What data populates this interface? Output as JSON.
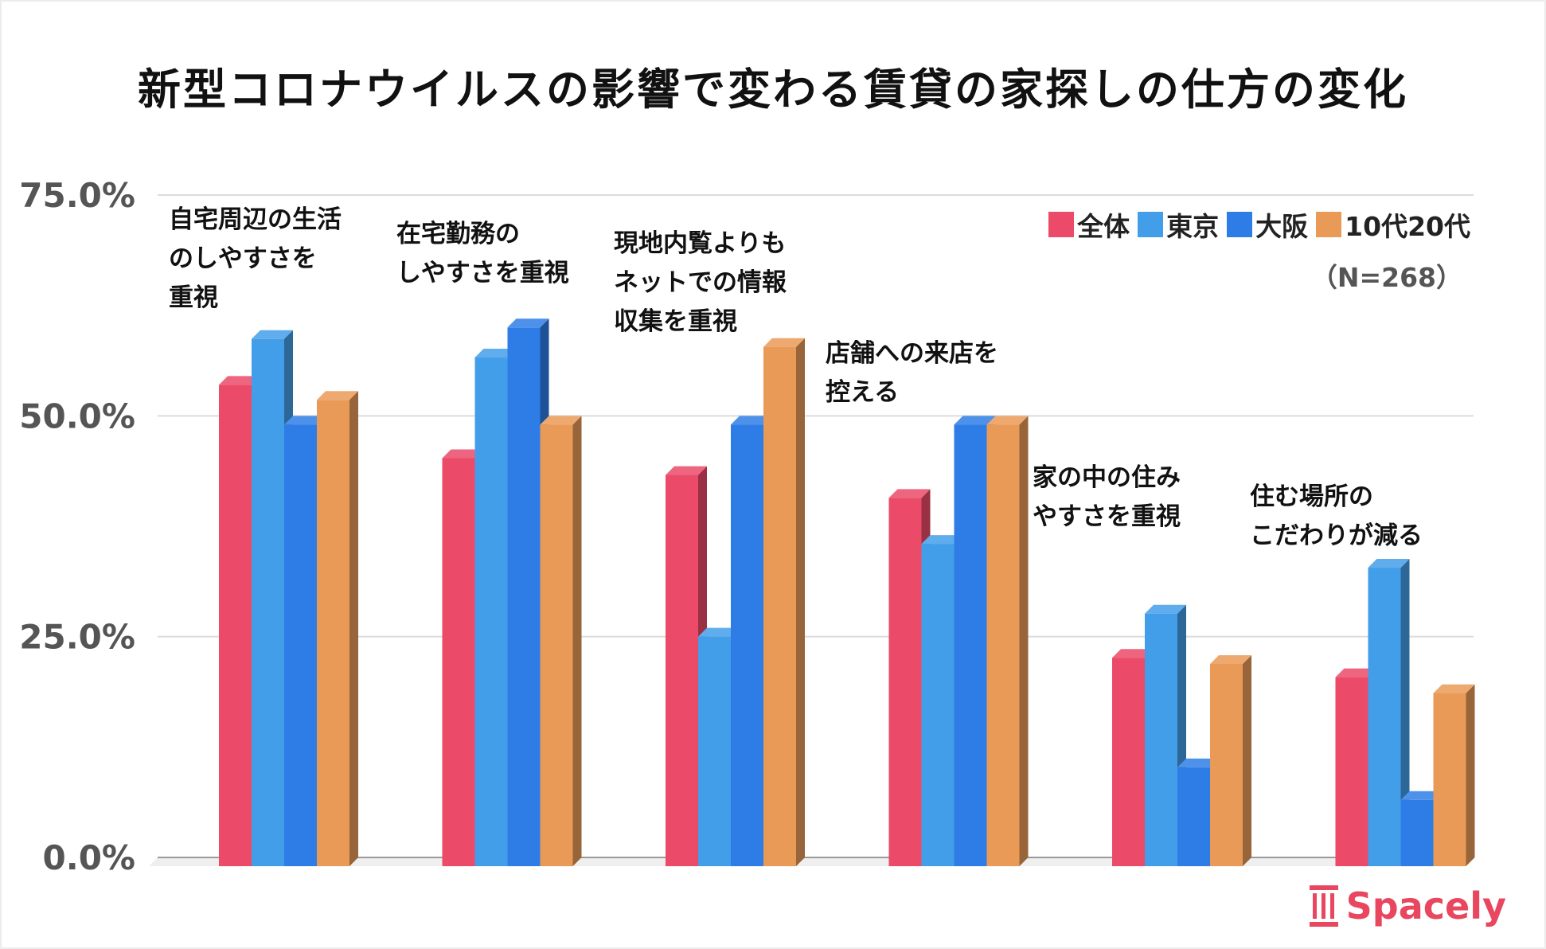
{
  "chart_data": {
    "type": "bar",
    "title": "新型コロナウイルスの影響で変わる賃貸の家探しの仕方の変化",
    "categories": [
      "自宅周辺の生活\nのしやすさを\n重視",
      "在宅勤務の\nしやすさを重視",
      "現地内覧よりも\nネットでの情報\n収集を重視",
      "店舗への来店を\n控える",
      "家の中の住み\nやすさを重視",
      "住む場所の\nこだわりが減る"
    ],
    "series": [
      {
        "name": "全体",
        "color": "#eb4a68",
        "values": [
          54.5,
          46.2,
          44.3,
          41.7,
          23.6,
          21.4
        ]
      },
      {
        "name": "東京",
        "color": "#439ee9",
        "values": [
          59.7,
          57.6,
          26.0,
          36.5,
          28.6,
          33.8
        ]
      },
      {
        "name": "大阪",
        "color": "#2e7de6",
        "values": [
          50.0,
          61.0,
          50.0,
          50.0,
          11.2,
          7.5
        ]
      },
      {
        "name": "10代20代",
        "color": "#ea9a57",
        "values": [
          52.8,
          50.0,
          58.8,
          50.0,
          22.9,
          19.6
        ]
      }
    ],
    "yticks": [
      "0.0%",
      "25.0%",
      "50.0%",
      "75.0%"
    ],
    "ylim": [
      0,
      75
    ],
    "grid": true,
    "legend_position": "top-right",
    "note": "（N=268）",
    "style": "3d-bar"
  },
  "logo": {
    "text": "Spacely",
    "color": "#e8475f"
  }
}
